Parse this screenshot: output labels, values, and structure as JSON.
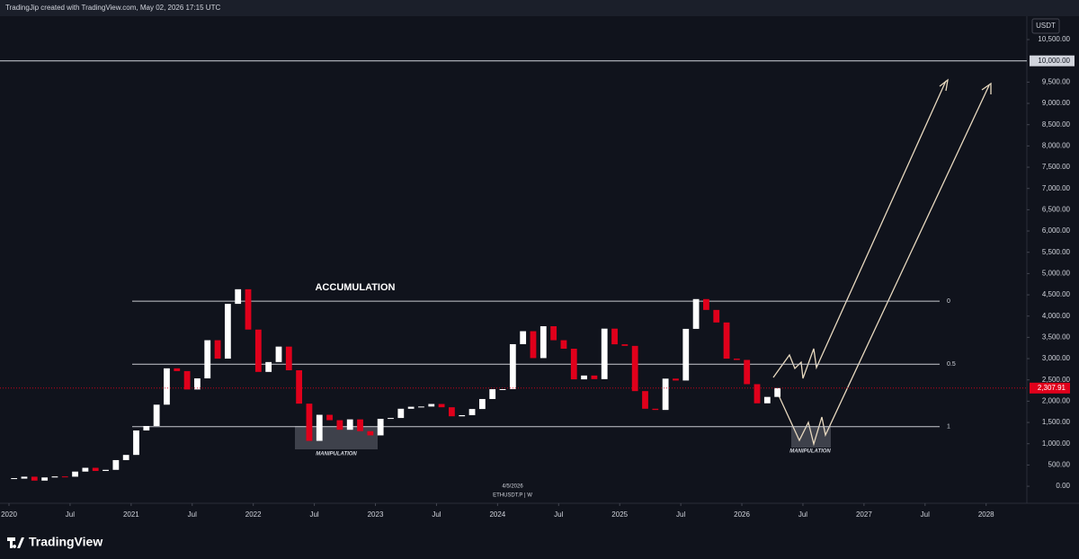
{
  "header": "TradingJip created with TradingView.com, May 02, 2026 17:15 UTC",
  "brand": "TradingView",
  "chart_data": {
    "type": "candlestick",
    "currency": "USDT",
    "date_label": "4/5/2026",
    "symbol": "ETHUSDT.P | W",
    "x": [
      "2020-01",
      "2020-02",
      "2020-03",
      "2020-04",
      "2020-05",
      "2020-06",
      "2020-07",
      "2020-08",
      "2020-09",
      "2020-10",
      "2020-11",
      "2020-12",
      "2021-01",
      "2021-02",
      "2021-03",
      "2021-04",
      "2021-05",
      "2021-06",
      "2021-07",
      "2021-08",
      "2021-09",
      "2021-10",
      "2021-11",
      "2021-12",
      "2022-01",
      "2022-02",
      "2022-03",
      "2022-04",
      "2022-05",
      "2022-06",
      "2022-07",
      "2022-08",
      "2022-09",
      "2022-10",
      "2022-11",
      "2022-12",
      "2023-01",
      "2023-02",
      "2023-03",
      "2023-04",
      "2023-05",
      "2023-06",
      "2023-07",
      "2023-08",
      "2023-09",
      "2023-10",
      "2023-11",
      "2023-12",
      "2024-01",
      "2024-02",
      "2024-03",
      "2024-04",
      "2024-05",
      "2024-06",
      "2024-07",
      "2024-08",
      "2024-09",
      "2024-10",
      "2024-11",
      "2024-12",
      "2025-01",
      "2025-02",
      "2025-03",
      "2025-04",
      "2025-05",
      "2025-06",
      "2025-07",
      "2025-08",
      "2025-09",
      "2025-10",
      "2025-11",
      "2025-12",
      "2026-01",
      "2026-02",
      "2026-03",
      "2026-04"
    ],
    "values": [
      180,
      225,
      133,
      207,
      231,
      225,
      345,
      434,
      360,
      386,
      615,
      737,
      1312,
      1417,
      1918,
      2772,
      2707,
      2275,
      2536,
      3433,
      3000,
      4288,
      4631,
      3683,
      2688,
      2920,
      3283,
      2727,
      1942,
      1067,
      1680,
      1553,
      1328,
      1572,
      1296,
      1196,
      1585,
      1605,
      1822,
      1869,
      1874,
      1934,
      1857,
      1645,
      1671,
      1816,
      2051,
      2282,
      2283,
      3340,
      3645,
      3013,
      3762,
      3433,
      3233,
      2513,
      2603,
      2518,
      3705,
      3337,
      3300,
      2237,
      1822,
      1794,
      2530,
      2486,
      3700,
      4400,
      4145,
      3850,
      3000,
      2970,
      2400,
      1950,
      2100,
      2307.91
    ],
    "up_color": "#ffffff",
    "down_color": "#e0001b",
    "xlim": [
      "2020-01",
      "2028-05"
    ],
    "xticks": [
      {
        "value": "2020-01",
        "label": "2020"
      },
      {
        "value": "2020-07",
        "label": "Jul"
      },
      {
        "value": "2021-01",
        "label": "2021"
      },
      {
        "value": "2021-07",
        "label": "Jul"
      },
      {
        "value": "2022-01",
        "label": "2022"
      },
      {
        "value": "2022-07",
        "label": "Jul"
      },
      {
        "value": "2023-01",
        "label": "2023"
      },
      {
        "value": "2023-07",
        "label": "Jul"
      },
      {
        "value": "2024-01",
        "label": "2024"
      },
      {
        "value": "2024-07",
        "label": "Jul"
      },
      {
        "value": "2025-01",
        "label": "2025"
      },
      {
        "value": "2025-07",
        "label": "Jul"
      },
      {
        "value": "2026-01",
        "label": "2026"
      },
      {
        "value": "2026-07",
        "label": "Jul"
      },
      {
        "value": "2027-01",
        "label": "2027"
      },
      {
        "value": "2027-07",
        "label": "Jul"
      },
      {
        "value": "2028-01",
        "label": "2028"
      }
    ],
    "ylim": [
      -400,
      11050
    ],
    "yticks": [
      {
        "value": 0,
        "label": "0.00"
      },
      {
        "value": 500,
        "label": "500.00"
      },
      {
        "value": 1000,
        "label": "1,000.00"
      },
      {
        "value": 1500,
        "label": "1,500.00"
      },
      {
        "value": 2000,
        "label": "2,000.00"
      },
      {
        "value": 2500,
        "label": "2,500.00"
      },
      {
        "value": 3000,
        "label": "3,000.00"
      },
      {
        "value": 3500,
        "label": "3,500.00"
      },
      {
        "value": 4000,
        "label": "4,000.00"
      },
      {
        "value": 4500,
        "label": "4,500.00"
      },
      {
        "value": 5000,
        "label": "5,000.00"
      },
      {
        "value": 5500,
        "label": "5,500.00"
      },
      {
        "value": 6000,
        "label": "6,000.00"
      },
      {
        "value": 6500,
        "label": "6,500.00"
      },
      {
        "value": 7000,
        "label": "7,000.00"
      },
      {
        "value": 7500,
        "label": "7,500.00"
      },
      {
        "value": 8000,
        "label": "8,000.00"
      },
      {
        "value": 8500,
        "label": "8,500.00"
      },
      {
        "value": 9000,
        "label": "9,000.00"
      },
      {
        "value": 9500,
        "label": "9,500.00"
      },
      {
        "value": 10500,
        "label": "10,500.00"
      }
    ],
    "target_line": {
      "value": 10000,
      "label": "10,000.00"
    },
    "current_price": {
      "value": 2307.91,
      "label": "2,307.91"
    },
    "fib_levels": [
      {
        "ratio": 0,
        "price": 4350
      },
      {
        "ratio": 0.5,
        "price": 2870
      },
      {
        "ratio": 1,
        "price": 1400
      }
    ],
    "annotations": {
      "accumulation": "ACCUMULATION",
      "manipulation_left": "MANIPULATION",
      "manipulation_right": "MANIPULATION"
    }
  }
}
